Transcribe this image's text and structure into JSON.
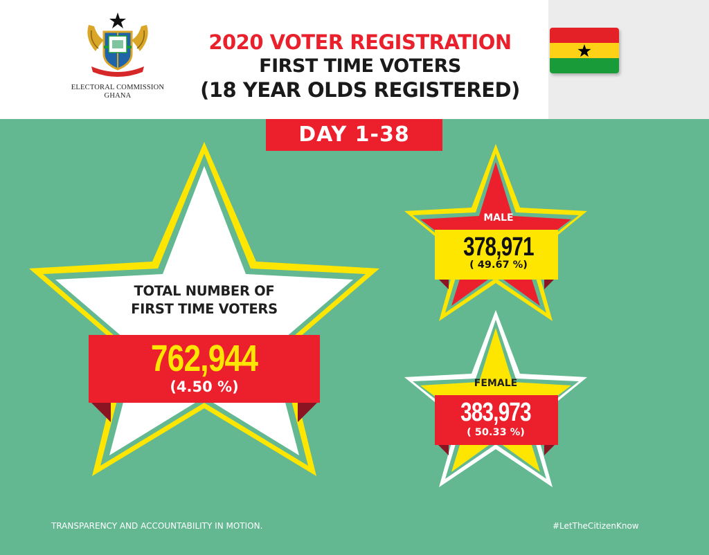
{
  "header": {
    "organization": "ELECTORAL COMMISSION",
    "country": "GHANA",
    "title_line1": "2020 VOTER REGISTRATION",
    "title_line2": "FIRST TIME VOTERS",
    "title_line3": "(18 YEAR OLDS REGISTERED)"
  },
  "period": "DAY 1-38",
  "total": {
    "label_line1": "TOTAL NUMBER OF",
    "label_line2": "FIRST TIME VOTERS",
    "value": "762,944",
    "percent": "(4.50 %)"
  },
  "male": {
    "label": "MALE",
    "value": "378,971",
    "percent": "( 49.67 %)"
  },
  "female": {
    "label": "FEMALE",
    "value": "383,973",
    "percent": "( 50.33 %)"
  },
  "footer": {
    "slogan": "TRANSPARENCY AND ACCOUNTABILITY IN MOTION.",
    "hashtag": "#LetTheCitizenKnow"
  },
  "colors": {
    "background": "#63b892",
    "red": "#ec1f2c",
    "yellow": "#ffe600",
    "green": "#1a9b3a"
  },
  "icons": [
    "coat-of-arms-icon",
    "ghana-flag-icon",
    "star-icon"
  ]
}
